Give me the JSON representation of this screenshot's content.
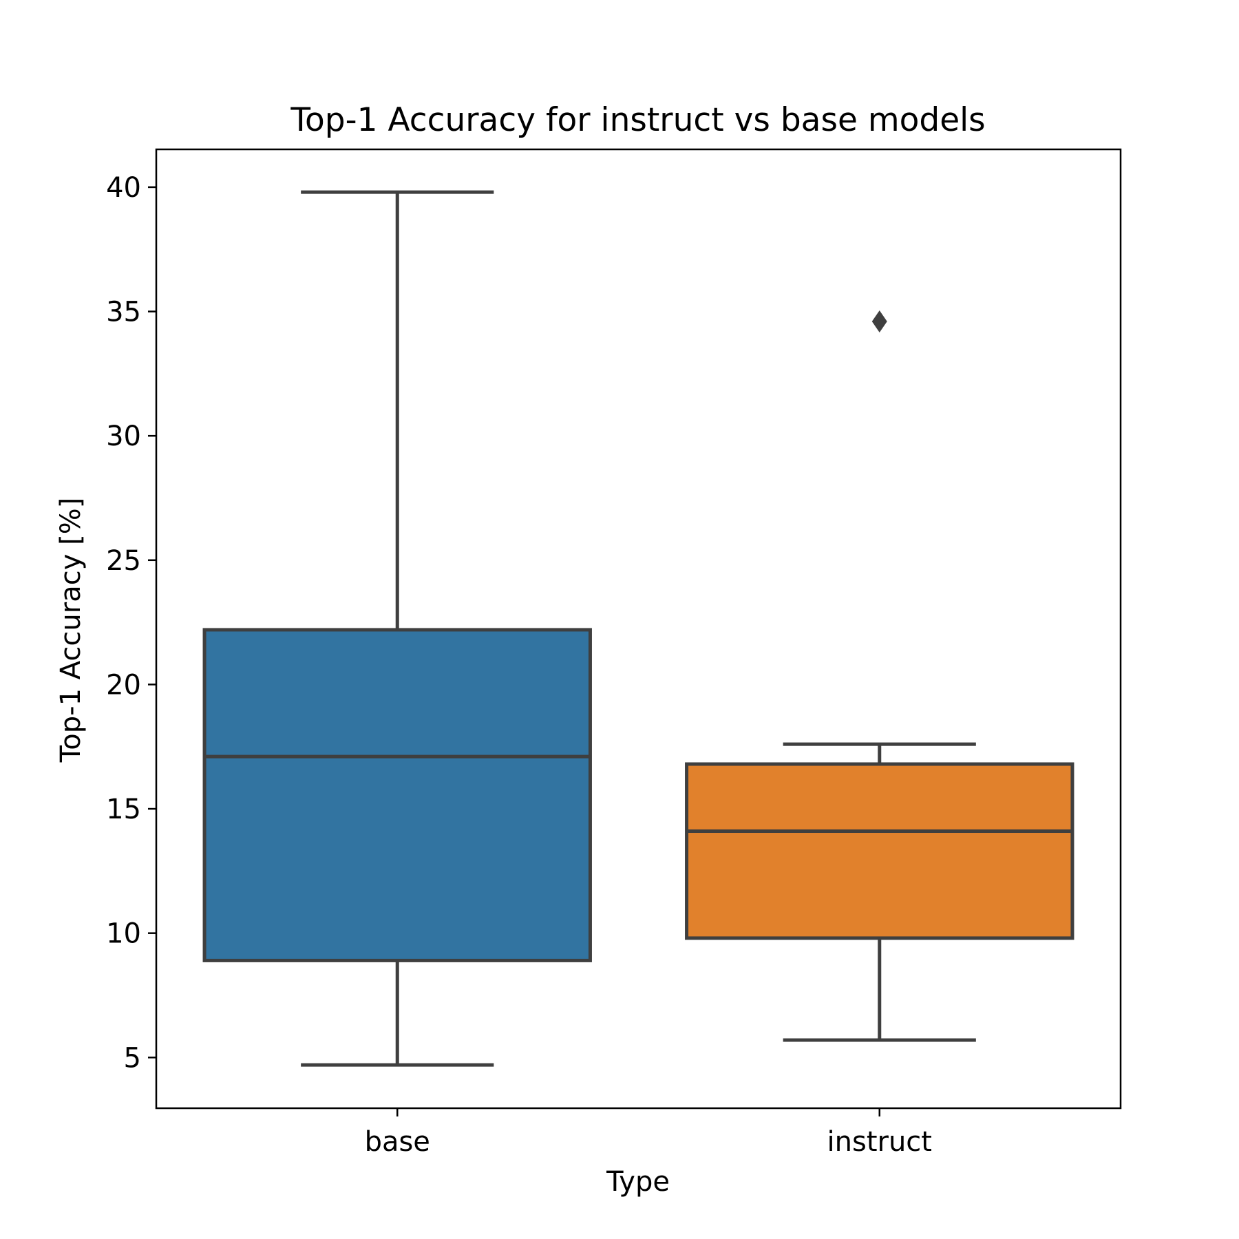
{
  "chart_data": {
    "type": "box",
    "title": "Top-1 Accuracy for instruct vs base models",
    "xlabel": "Type",
    "ylabel": "Top-1 Accuracy [%]",
    "ylim": [
      2.96,
      41.52
    ],
    "yticks": [
      5,
      10,
      15,
      20,
      25,
      30,
      35,
      40
    ],
    "grid": false,
    "categories": [
      "base",
      "instruct"
    ],
    "boxes": [
      {
        "name": "base",
        "whisker_low": 4.7,
        "q1": 8.9,
        "median": 17.1,
        "q3": 22.2,
        "whisker_high": 39.8,
        "outliers": [],
        "color": "#3274a1"
      },
      {
        "name": "instruct",
        "whisker_low": 5.7,
        "q1": 9.8,
        "median": 14.1,
        "q3": 16.8,
        "whisker_high": 17.6,
        "outliers": [
          34.6
        ],
        "color": "#e1812c"
      }
    ],
    "line_color": "#3f3f3f"
  }
}
